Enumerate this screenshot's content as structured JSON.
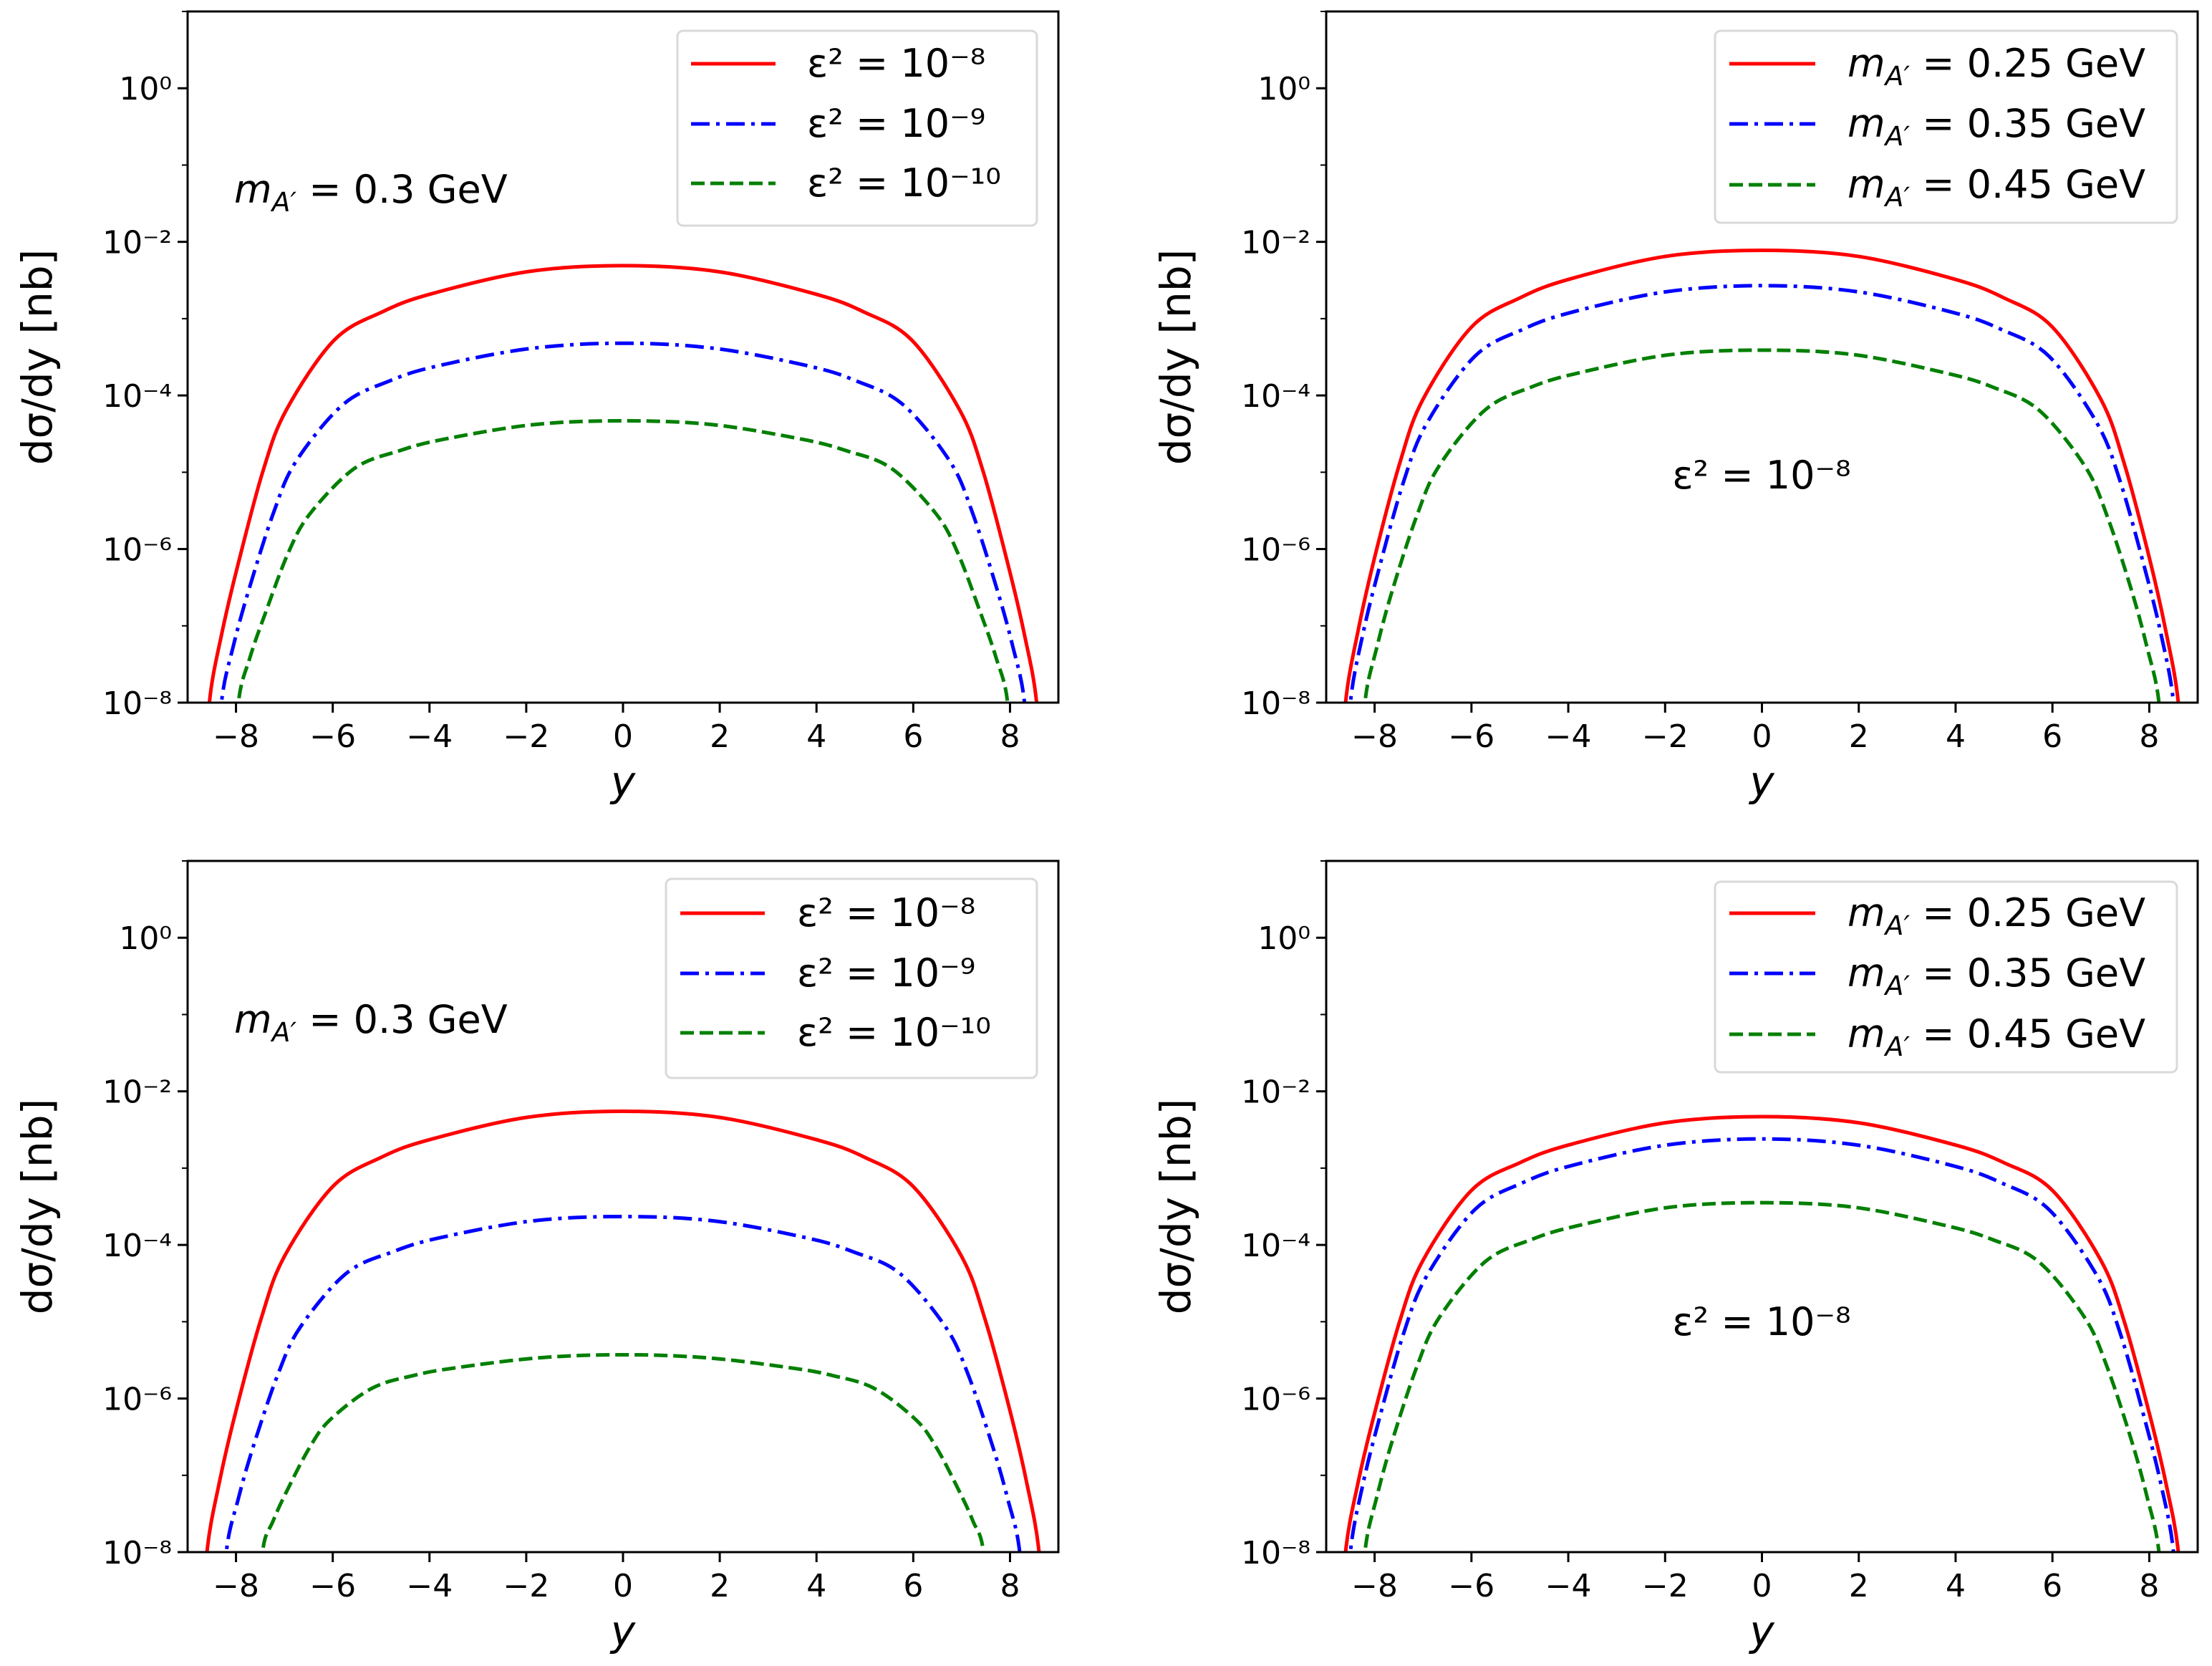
{
  "chart_data": [
    {
      "type": "line",
      "panel": "top-left",
      "xlabel": "y",
      "ylabel": "dσ/dy [nb]",
      "yscale": "log",
      "xlim": [
        -9,
        9
      ],
      "ylim_log10": [
        -8,
        1
      ],
      "xticks": [
        -8,
        -6,
        -4,
        -2,
        0,
        2,
        4,
        6,
        8
      ],
      "xtick_labels": [
        "−8",
        "−6",
        "−4",
        "−2",
        "0",
        "2",
        "4",
        "6",
        "8"
      ],
      "yticks_log10": [
        0,
        -2,
        -4,
        -6,
        -8
      ],
      "ytick_labels": [
        "10⁰",
        "10⁻²",
        "10⁻⁴",
        "10⁻⁶",
        "10⁻⁸"
      ],
      "annotation": {
        "sym": "m",
        "sub": "A′",
        "rest": " = 0.3 GeV"
      },
      "legend_position": "top-right",
      "symmetric_in_x": true,
      "series": [
        {
          "name": "ε² = 10⁻⁸",
          "color": "#ff0000",
          "style": "solid",
          "x": [
            0,
            1.99,
            3.98,
            4.97,
            5.97,
            6.96,
            7.44,
            7.95,
            8.29,
            8.55
          ],
          "y_log10": [
            -2.31,
            -2.39,
            -2.68,
            -2.91,
            -3.28,
            -4.19,
            -4.98,
            -6.18,
            -7.09,
            -8.0
          ]
        },
        {
          "name": "ε² = 10⁻⁹",
          "color": "#0000ff",
          "style": "dashdot",
          "x": [
            0,
            1.93,
            3.86,
            4.82,
            5.79,
            6.76,
            7.22,
            7.72,
            8.05,
            8.3
          ],
          "y_log10": [
            -3.32,
            -3.39,
            -3.62,
            -3.81,
            -4.12,
            -4.86,
            -5.52,
            -6.5,
            -7.25,
            -8.0
          ]
        },
        {
          "name": "ε² = 10⁻¹⁰",
          "color": "#007f00",
          "style": "dashed",
          "x": [
            0,
            1.85,
            3.7,
            4.62,
            5.55,
            6.47,
            6.92,
            7.39,
            7.71,
            7.95
          ],
          "y_log10": [
            -4.33,
            -4.38,
            -4.57,
            -4.72,
            -4.95,
            -5.54,
            -6.05,
            -6.83,
            -7.41,
            -8.0
          ]
        }
      ]
    },
    {
      "type": "line",
      "panel": "top-right",
      "xlabel": "y",
      "ylabel": "dσ/dy [nb]",
      "yscale": "log",
      "xlim": [
        -9,
        9
      ],
      "ylim_log10": [
        -8,
        1
      ],
      "xticks": [
        -8,
        -6,
        -4,
        -2,
        0,
        2,
        4,
        6,
        8
      ],
      "xtick_labels": [
        "−8",
        "−6",
        "−4",
        "−2",
        "0",
        "2",
        "4",
        "6",
        "8"
      ],
      "yticks_log10": [
        0,
        -2,
        -4,
        -6,
        -8
      ],
      "ytick_labels": [
        "10⁰",
        "10⁻²",
        "10⁻⁴",
        "10⁻⁶",
        "10⁻⁸"
      ],
      "annotation": {
        "text": "ε² = 10⁻⁸"
      },
      "legend_position": "top-right",
      "symmetric_in_x": true,
      "series": [
        {
          "name": {
            "sym": "m",
            "sub": "A′",
            "rest": " = 0.25 GeV"
          },
          "color": "#ff0000",
          "style": "solid",
          "x": [
            0,
            2.0,
            4.0,
            5.0,
            6.0,
            7.0,
            7.48,
            8.0,
            8.34,
            8.6
          ],
          "y_log10": [
            -2.11,
            -2.19,
            -2.49,
            -2.73,
            -3.11,
            -4.05,
            -4.88,
            -6.11,
            -7.06,
            -8.0
          ]
        },
        {
          "name": {
            "sym": "m",
            "sub": "A′",
            "rest": " = 0.35 GeV"
          },
          "color": "#0000ff",
          "style": "dashdot",
          "x": [
            0,
            1.98,
            3.95,
            4.94,
            5.93,
            6.92,
            7.4,
            7.91,
            8.25,
            8.5
          ],
          "y_log10": [
            -2.57,
            -2.65,
            -2.92,
            -3.14,
            -3.49,
            -4.36,
            -5.12,
            -6.26,
            -7.13,
            -8.0
          ]
        },
        {
          "name": {
            "sym": "m",
            "sub": "A′",
            "rest": " = 0.45 GeV"
          },
          "color": "#007f00",
          "style": "dashed",
          "x": [
            0,
            1.91,
            3.81,
            4.76,
            5.72,
            6.67,
            7.13,
            7.63,
            7.95,
            8.2
          ],
          "y_log10": [
            -3.41,
            -3.47,
            -3.71,
            -3.89,
            -4.19,
            -4.92,
            -5.57,
            -6.53,
            -7.27,
            -8.0
          ]
        }
      ]
    },
    {
      "type": "line",
      "panel": "bottom-left",
      "xlabel": "y",
      "ylabel": "dσ/dy [nb]",
      "yscale": "log",
      "xlim": [
        -9,
        9
      ],
      "ylim_log10": [
        -8,
        1
      ],
      "xticks": [
        -8,
        -6,
        -4,
        -2,
        0,
        2,
        4,
        6,
        8
      ],
      "xtick_labels": [
        "−8",
        "−6",
        "−4",
        "−2",
        "0",
        "2",
        "4",
        "6",
        "8"
      ],
      "yticks_log10": [
        0,
        -2,
        -4,
        -6,
        -8
      ],
      "ytick_labels": [
        "10⁰",
        "10⁻²",
        "10⁻⁴",
        "10⁻⁶",
        "10⁻⁸"
      ],
      "annotation": {
        "sym": "m",
        "sub": "A′",
        "rest": " = 0.3 GeV"
      },
      "legend_position": "top-right",
      "symmetric_in_x": true,
      "series": [
        {
          "name": "ε² = 10⁻⁸",
          "color": "#ff0000",
          "style": "solid",
          "x": [
            0,
            2.0,
            4.0,
            5.0,
            6.0,
            7.0,
            7.48,
            8.0,
            8.34,
            8.6
          ],
          "y_log10": [
            -2.26,
            -2.34,
            -2.63,
            -2.86,
            -3.24,
            -4.15,
            -4.96,
            -6.16,
            -7.08,
            -8.0
          ]
        },
        {
          "name": "ε² = 10⁻⁹",
          "color": "#0000ff",
          "style": "dashdot",
          "x": [
            0,
            1.91,
            3.81,
            4.76,
            5.72,
            6.67,
            7.13,
            7.63,
            7.95,
            8.2
          ],
          "y_log10": [
            -3.63,
            -3.69,
            -3.91,
            -4.09,
            -4.37,
            -5.07,
            -5.68,
            -6.6,
            -7.3,
            -8.0
          ]
        },
        {
          "name": "ε² = 10⁻¹⁰",
          "color": "#007f00",
          "style": "dashed",
          "x": [
            0,
            1.74,
            3.46,
            4.33,
            5.2,
            6.06,
            6.48,
            6.93,
            7.23,
            7.45
          ],
          "y_log10": [
            -5.43,
            -5.47,
            -5.6,
            -5.7,
            -5.87,
            -6.28,
            -6.64,
            -7.18,
            -7.59,
            -8.0
          ]
        }
      ]
    },
    {
      "type": "line",
      "panel": "bottom-right",
      "xlabel": "y",
      "ylabel": "dσ/dy [nb]",
      "yscale": "log",
      "xlim": [
        -9,
        9
      ],
      "ylim_log10": [
        -8,
        1
      ],
      "xticks": [
        -8,
        -6,
        -4,
        -2,
        0,
        2,
        4,
        6,
        8
      ],
      "xtick_labels": [
        "−8",
        "−6",
        "−4",
        "−2",
        "0",
        "2",
        "4",
        "6",
        "8"
      ],
      "yticks_log10": [
        0,
        -2,
        -4,
        -6,
        -8
      ],
      "ytick_labels": [
        "10⁰",
        "10⁻²",
        "10⁻⁴",
        "10⁻⁶",
        "10⁻⁸"
      ],
      "annotation": {
        "text": "ε² = 10⁻⁸"
      },
      "legend_position": "top-right",
      "symmetric_in_x": true,
      "series": [
        {
          "name": {
            "sym": "m",
            "sub": "A′",
            "rest": " = 0.25 GeV"
          },
          "color": "#ff0000",
          "style": "solid",
          "x": [
            0,
            2.0,
            4.0,
            5.0,
            6.0,
            7.0,
            7.48,
            8.0,
            8.34,
            8.6
          ],
          "y_log10": [
            -2.33,
            -2.41,
            -2.7,
            -2.93,
            -3.29,
            -4.2,
            -4.99,
            -6.19,
            -7.09,
            -8.0
          ]
        },
        {
          "name": {
            "sym": "m",
            "sub": "A′",
            "rest": " = 0.35 GeV"
          },
          "color": "#0000ff",
          "style": "dashdot",
          "x": [
            0,
            1.98,
            3.95,
            4.94,
            5.93,
            6.92,
            7.4,
            7.91,
            8.25,
            8.5
          ],
          "y_log10": [
            -2.62,
            -2.7,
            -2.97,
            -3.19,
            -3.54,
            -4.4,
            -5.15,
            -6.28,
            -7.14,
            -8.0
          ]
        },
        {
          "name": {
            "sym": "m",
            "sub": "A′",
            "rest": " = 0.45 GeV"
          },
          "color": "#007f00",
          "style": "dashed",
          "x": [
            0,
            1.91,
            3.81,
            4.76,
            5.72,
            6.67,
            7.13,
            7.63,
            7.95,
            8.2
          ],
          "y_log10": [
            -3.45,
            -3.51,
            -3.75,
            -3.93,
            -4.22,
            -4.95,
            -5.59,
            -6.54,
            -7.27,
            -8.0
          ]
        }
      ]
    }
  ]
}
